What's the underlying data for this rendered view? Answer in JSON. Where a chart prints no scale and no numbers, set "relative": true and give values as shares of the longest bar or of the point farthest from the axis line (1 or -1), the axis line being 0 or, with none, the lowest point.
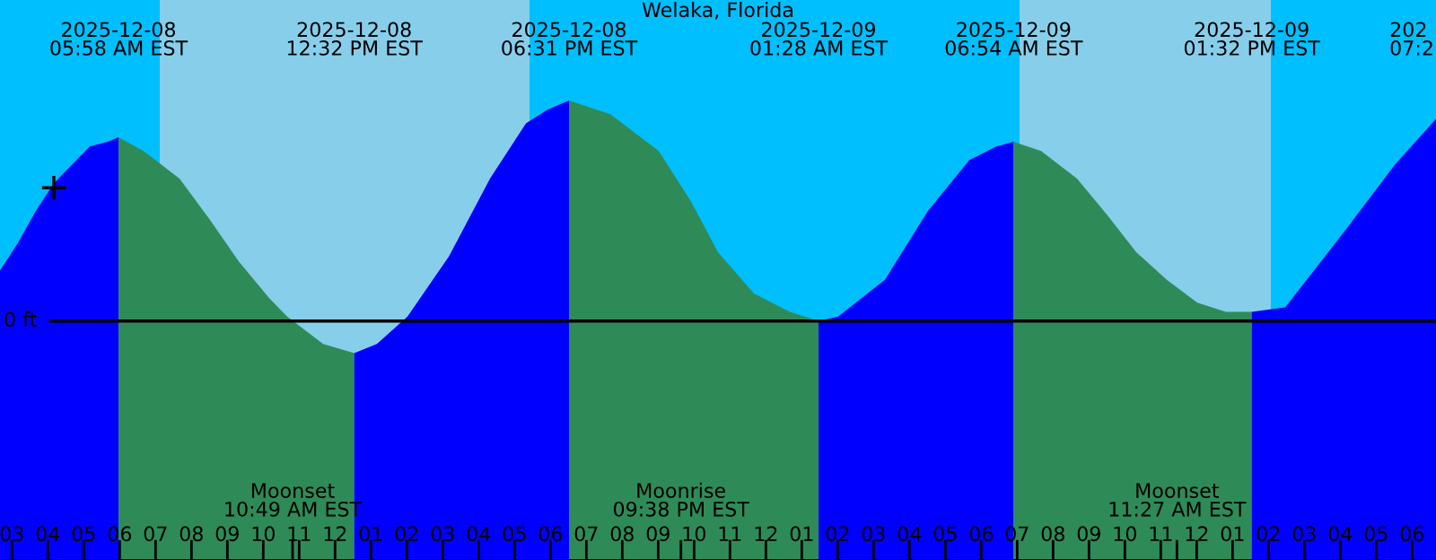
{
  "chart_data": {
    "type": "area",
    "title": "Welaka, Florida",
    "relative": true,
    "tick_labels": "x",
    "xlim": [
      "2025-12-08T02:40",
      "2025-12-09T18:40"
    ],
    "xticks": [
      {
        "value": "2025-12-08T03:00",
        "label": "03"
      },
      {
        "value": "2025-12-08T04:00",
        "label": "04"
      },
      {
        "value": "2025-12-08T05:00",
        "label": "05"
      },
      {
        "value": "2025-12-08T06:00",
        "label": "06"
      },
      {
        "value": "2025-12-08T07:00",
        "label": "07"
      },
      {
        "value": "2025-12-08T08:00",
        "label": "08"
      },
      {
        "value": "2025-12-08T09:00",
        "label": "09"
      },
      {
        "value": "2025-12-08T10:00",
        "label": "10"
      },
      {
        "value": "2025-12-08T10:49",
        "label": null
      },
      {
        "value": "2025-12-08T11:00",
        "label": "11"
      },
      {
        "value": "2025-12-08T12:00",
        "label": "12"
      },
      {
        "value": "2025-12-08T13:00",
        "label": "01"
      },
      {
        "value": "2025-12-08T14:00",
        "label": "02"
      },
      {
        "value": "2025-12-08T15:00",
        "label": "03"
      },
      {
        "value": "2025-12-08T16:00",
        "label": "04"
      },
      {
        "value": "2025-12-08T17:00",
        "label": "05"
      },
      {
        "value": "2025-12-08T18:00",
        "label": "06"
      },
      {
        "value": "2025-12-08T19:00",
        "label": "07"
      },
      {
        "value": "2025-12-08T20:00",
        "label": "08"
      },
      {
        "value": "2025-12-08T21:00",
        "label": "09"
      },
      {
        "value": "2025-12-08T21:38",
        "label": null
      },
      {
        "value": "2025-12-08T22:00",
        "label": "10"
      },
      {
        "value": "2025-12-08T23:00",
        "label": "11"
      },
      {
        "value": "2025-12-09T00:00",
        "label": "12"
      },
      {
        "value": "2025-12-09T01:00",
        "label": "01"
      },
      {
        "value": "2025-12-09T02:00",
        "label": "02"
      },
      {
        "value": "2025-12-09T03:00",
        "label": "03"
      },
      {
        "value": "2025-12-09T04:00",
        "label": "04"
      },
      {
        "value": "2025-12-09T05:00",
        "label": "05"
      },
      {
        "value": "2025-12-09T06:00",
        "label": "06"
      },
      {
        "value": "2025-12-09T07:00",
        "label": "07"
      },
      {
        "value": "2025-12-09T08:00",
        "label": "08"
      },
      {
        "value": "2025-12-09T09:00",
        "label": "09"
      },
      {
        "value": "2025-12-09T10:00",
        "label": "10"
      },
      {
        "value": "2025-12-09T11:00",
        "label": "11"
      },
      {
        "value": "2025-12-09T11:27",
        "label": null
      },
      {
        "value": "2025-12-09T12:00",
        "label": "12"
      },
      {
        "value": "2025-12-09T13:00",
        "label": "01"
      },
      {
        "value": "2025-12-09T14:00",
        "label": "02"
      },
      {
        "value": "2025-12-09T15:00",
        "label": "03"
      },
      {
        "value": "2025-12-09T16:00",
        "label": "04"
      },
      {
        "value": "2025-12-09T17:00",
        "label": "05"
      },
      {
        "value": "2025-12-09T18:00",
        "label": "06"
      }
    ],
    "bands": [
      {
        "axis": "x",
        "from": "2025-12-08T02:40",
        "to": "2025-12-08T07:07",
        "color": "#00bfff"
      },
      {
        "axis": "x",
        "from": "2025-12-08T07:07",
        "to": "2025-12-08T17:25",
        "color": "#87ceeb"
      },
      {
        "axis": "x",
        "from": "2025-12-08T17:25",
        "to": "2025-12-09T07:04",
        "color": "#00bfff"
      },
      {
        "axis": "x",
        "from": "2025-12-09T07:04",
        "to": "2025-12-09T14:04",
        "color": "#87ceeb"
      },
      {
        "axis": "x",
        "from": "2025-12-09T14:04",
        "to": "2025-12-09T18:40",
        "color": "#00bfff"
      }
    ],
    "series": [
      {
        "color": "#0000ff",
        "x": [
          "2025-12-08T02:40",
          "2025-12-08T03:10",
          "2025-12-08T03:40",
          "2025-12-08T04:10",
          "2025-12-08T04:40",
          "2025-12-08T05:10",
          "2025-12-08T05:40",
          "2025-12-08T05:58"
        ],
        "values": [
          0.63,
          0.69,
          0.76,
          0.82,
          0.86,
          0.9,
          0.91,
          0.92
        ]
      },
      {
        "color": "#2e8b57",
        "x": [
          "2025-12-08T05:58",
          "2025-12-08T06:40",
          "2025-12-08T07:40",
          "2025-12-08T08:31",
          "2025-12-08T09:19",
          "2025-12-08T10:10",
          "2025-12-08T10:40",
          "2025-12-08T11:40",
          "2025-12-08T12:32"
        ],
        "values": [
          0.92,
          0.89,
          0.83,
          0.74,
          0.65,
          0.57,
          0.53,
          0.47,
          0.45
        ]
      },
      {
        "color": "#0000ff",
        "x": [
          "2025-12-08T12:32",
          "2025-12-08T13:10",
          "2025-12-08T14:01",
          "2025-12-08T15:10",
          "2025-12-08T16:19",
          "2025-12-08T17:19",
          "2025-12-08T17:55",
          "2025-12-08T18:31"
        ],
        "values": [
          0.45,
          0.47,
          0.53,
          0.66,
          0.83,
          0.95,
          0.98,
          1.0
        ]
      },
      {
        "color": "#2e8b57",
        "x": [
          "2025-12-08T18:31",
          "2025-12-08T19:40",
          "2025-12-08T21:01",
          "2025-12-08T21:55",
          "2025-12-08T22:40",
          "2025-12-08T23:40",
          "2025-12-09T00:40",
          "2025-12-09T01:28"
        ],
        "values": [
          1.0,
          0.97,
          0.89,
          0.78,
          0.67,
          0.58,
          0.54,
          0.52
        ]
      },
      {
        "color": "#0000ff",
        "x": [
          "2025-12-09T01:28",
          "2025-12-09T02:01",
          "2025-12-09T03:19",
          "2025-12-09T04:31",
          "2025-12-09T05:40",
          "2025-12-09T06:25",
          "2025-12-09T06:54"
        ],
        "values": [
          0.52,
          0.53,
          0.61,
          0.76,
          0.87,
          0.9,
          0.91
        ]
      },
      {
        "color": "#2e8b57",
        "x": [
          "2025-12-09T06:54",
          "2025-12-09T07:40",
          "2025-12-09T08:40",
          "2025-12-09T09:31",
          "2025-12-09T10:19",
          "2025-12-09T11:10",
          "2025-12-09T12:01",
          "2025-12-09T12:49",
          "2025-12-09T13:32"
        ],
        "values": [
          0.91,
          0.89,
          0.83,
          0.75,
          0.67,
          0.61,
          0.56,
          0.54,
          0.54
        ]
      },
      {
        "color": "#0000ff",
        "x": [
          "2025-12-09T13:32",
          "2025-12-09T14:28",
          "2025-12-09T16:10",
          "2025-12-09T17:31",
          "2025-12-09T18:40"
        ],
        "values": [
          0.54,
          0.55,
          0.72,
          0.86,
          0.96
        ]
      },
      {
        "type": "scatter",
        "color": "#000000",
        "marker": "cross",
        "x": [
          "2025-12-08T04:10"
        ],
        "values": [
          0.81
        ]
      }
    ],
    "ref_lines": [
      {
        "axis": "y",
        "value": 0.52,
        "label": "0 ft",
        "color": "#000000"
      }
    ],
    "annotations": [
      "2025-12-08\n05:58 AM EST",
      "2025-12-08\n12:32 PM EST",
      "2025-12-08\n06:31 PM EST",
      "2025-12-09\n01:28 AM EST",
      "2025-12-09\n06:54 AM EST",
      "2025-12-09\n01:32 PM EST",
      "202\n07:2",
      "Moonset\n10:49 AM EST",
      "Moonrise\n09:38 PM EST",
      "Moonset\n11:27 AM EST"
    ]
  }
}
